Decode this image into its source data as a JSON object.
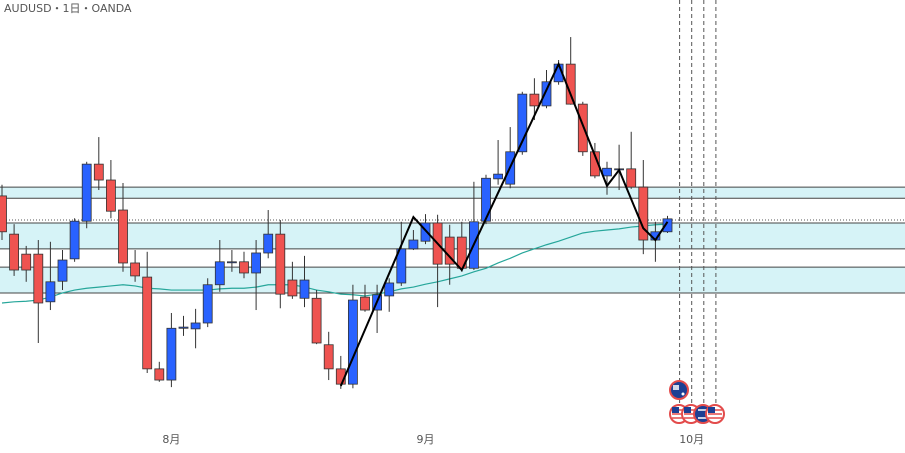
{
  "chart_data": {
    "type": "candlestick",
    "title": "AUDUSD・1日・OANDA",
    "ylim": [
      0.623,
      0.7
    ],
    "up_color": "#2962ff",
    "down_color": "#ef5350",
    "categories": [
      null,
      null,
      null,
      null,
      null,
      null,
      null,
      null,
      null,
      null,
      null,
      null,
      null,
      null,
      "8月",
      null,
      null,
      null,
      null,
      null,
      null,
      null,
      null,
      null,
      null,
      null,
      null,
      null,
      null,
      null,
      null,
      null,
      null,
      null,
      null,
      "9月",
      null,
      null,
      null,
      null,
      null,
      null,
      null,
      null,
      null,
      null,
      null,
      null,
      null,
      null,
      null,
      null,
      null,
      null,
      null,
      null,
      null,
      "10月",
      null,
      null
    ],
    "open": [
      0.6667,
      0.6602,
      0.6568,
      0.6568,
      0.6487,
      0.6522,
      0.656,
      0.6624,
      0.6721,
      0.6694,
      0.6643,
      0.6553,
      0.6529,
      0.6373,
      0.6354,
      0.6442,
      0.6441,
      0.6451,
      0.6516,
      0.6555,
      0.6555,
      0.6536,
      0.657,
      0.6602,
      0.6524,
      0.6493,
      0.6493,
      0.6414,
      0.6373,
      0.6347,
      0.6495,
      0.6473,
      0.6497,
      0.6519,
      0.6577,
      0.659,
      0.6621,
      0.6597,
      0.6597,
      0.6544,
      0.6624,
      0.6696,
      0.6687,
      0.6742,
      0.684,
      0.682,
      0.6861,
      0.6891,
      0.6823,
      0.6742,
      0.6701,
      0.6713,
      0.6713,
      0.6682,
      0.6592,
      0.6606,
      null,
      null,
      null,
      null
    ],
    "high": [
      0.6686,
      0.6619,
      0.6582,
      0.6592,
      0.6589,
      0.6575,
      0.6629,
      0.6725,
      0.6767,
      0.6728,
      0.6689,
      0.6575,
      0.6572,
      0.6385,
      0.6468,
      0.6463,
      0.6475,
      0.6527,
      0.6592,
      0.6575,
      0.6572,
      0.6592,
      0.6643,
      0.6626,
      0.6555,
      0.6565,
      0.6507,
      0.6436,
      0.6395,
      0.6516,
      0.6516,
      0.6516,
      0.6527,
      0.6623,
      0.6609,
      0.6636,
      0.6635,
      0.6618,
      0.6623,
      0.6691,
      0.6703,
      0.6762,
      0.6784,
      0.6844,
      0.6867,
      0.6881,
      0.6898,
      0.6937,
      0.6827,
      0.6757,
      0.6725,
      0.6754,
      0.6776,
      0.6728,
      0.6623,
      0.6633,
      null,
      null,
      null,
      null
    ],
    "low": [
      0.6592,
      0.6531,
      0.6521,
      0.6417,
      0.6473,
      0.6507,
      0.6555,
      0.6612,
      0.6677,
      0.6629,
      0.6538,
      0.6521,
      0.6366,
      0.6351,
      0.6342,
      0.6429,
      0.6408,
      0.6444,
      0.6504,
      0.6538,
      0.6527,
      0.6473,
      0.6561,
      0.6476,
      0.6492,
      0.6478,
      0.6415,
      0.6354,
      0.6339,
      0.634,
      0.647,
      0.6434,
      0.647,
      0.6514,
      0.6575,
      0.6585,
      0.6478,
      0.6516,
      0.6538,
      0.6541,
      0.6619,
      0.6686,
      0.668,
      0.6737,
      0.6796,
      0.6816,
      0.6856,
      0.6822,
      0.6735,
      0.6697,
      0.6669,
      0.6677,
      0.6679,
      0.6568,
      0.6555,
      0.6604,
      null,
      null,
      null,
      null
    ],
    "close": [
      0.6606,
      0.6541,
      0.6541,
      0.6485,
      0.6521,
      0.6558,
      0.6624,
      0.6721,
      0.6694,
      0.6641,
      0.6553,
      0.6531,
      0.6373,
      0.6354,
      0.6442,
      0.6444,
      0.6451,
      0.6516,
      0.6555,
      0.6555,
      0.6536,
      0.657,
      0.6602,
      0.65,
      0.6497,
      0.6524,
      0.6417,
      0.6373,
      0.6347,
      0.649,
      0.6473,
      0.6499,
      0.6519,
      0.6577,
      0.6592,
      0.6621,
      0.6551,
      0.6551,
      0.6544,
      0.6623,
      0.6697,
      0.6704,
      0.6742,
      0.684,
      0.682,
      0.6861,
      0.6891,
      0.6823,
      0.6742,
      0.6701,
      0.6714,
      0.6713,
      0.6682,
      0.6592,
      0.6606,
      0.6628,
      null,
      null,
      null,
      null
    ],
    "moving_average": {
      "color": "#26a69a",
      "values": [
        0.6485,
        0.6487,
        0.6488,
        0.649,
        0.6495,
        0.6502,
        0.6507,
        0.651,
        0.6512,
        0.6514,
        0.6516,
        0.6514,
        0.651,
        0.6509,
        0.6507,
        0.6507,
        0.6507,
        0.6507,
        0.6509,
        0.651,
        0.651,
        0.6512,
        0.6516,
        0.6516,
        0.6516,
        0.6512,
        0.6507,
        0.6504,
        0.65,
        0.6499,
        0.6497,
        0.65,
        0.6504,
        0.6509,
        0.6512,
        0.6517,
        0.6521,
        0.6526,
        0.6531,
        0.6538,
        0.6544,
        0.6553,
        0.6561,
        0.657,
        0.6577,
        0.6584,
        0.659,
        0.6597,
        0.6604,
        0.6607,
        0.6609,
        0.6611,
        0.6614,
        0.6616,
        0.6618,
        0.6619,
        null,
        null,
        null,
        null
      ]
    },
    "zigzag": {
      "color": "#000000",
      "x": [
        28,
        34,
        38,
        46,
        50,
        51,
        53,
        54,
        55
      ],
      "values": [
        0.6344,
        0.6631,
        0.6541,
        0.6891,
        0.6684,
        0.6711,
        0.6612,
        0.6592,
        0.6623
      ]
    },
    "zones": [
      [
        0.6682,
        0.6663
      ],
      [
        0.6621,
        0.6577
      ],
      [
        0.6546,
        0.6502
      ]
    ],
    "zone_color": "#d6f3f7",
    "dotted_level": 0.6626
  }
}
